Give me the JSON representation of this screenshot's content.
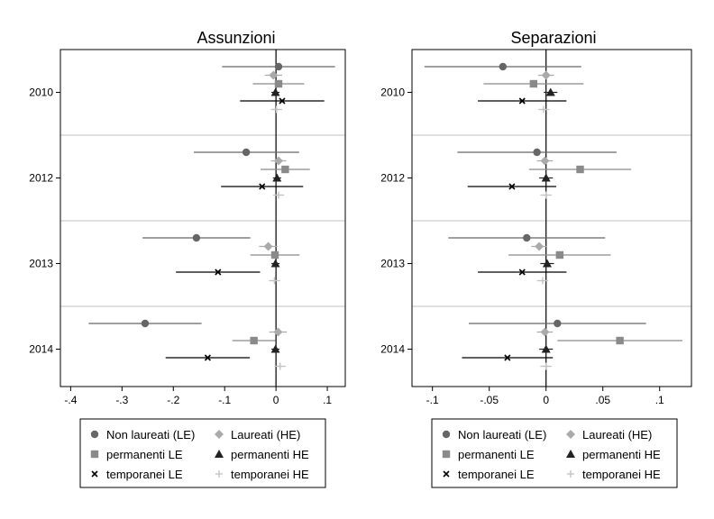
{
  "chart_data": [
    {
      "type": "scatter",
      "title": "Assunzioni",
      "xlim": [
        -0.42,
        0.135
      ],
      "xticks": [
        -0.4,
        -0.3,
        -0.2,
        -0.1,
        0,
        0.1
      ],
      "xtick_labels": [
        "-.4",
        "-.3",
        "-.2",
        "-.1",
        "0",
        ".1"
      ],
      "groups": [
        "2010",
        "2012",
        "2013",
        "2014"
      ],
      "grid": "horizontal separators between year groups",
      "series": [
        {
          "name": "Non laureati (LE)",
          "marker": "circle",
          "color": "#666666",
          "values": [
            0.005,
            -0.058,
            -0.155,
            -0.255
          ],
          "ci_low": [
            -0.105,
            -0.16,
            -0.26,
            -0.365
          ],
          "ci_high": [
            0.115,
            0.045,
            -0.05,
            -0.145
          ]
        },
        {
          "name": "Laureati (HE)",
          "marker": "diamond",
          "color": "#aaaaaa",
          "values": [
            -0.005,
            0.005,
            -0.015,
            0.004
          ],
          "ci_low": [
            -0.022,
            -0.01,
            -0.033,
            -0.013
          ],
          "ci_high": [
            0.012,
            0.02,
            0.003,
            0.021
          ]
        },
        {
          "name": "permanenti LE",
          "marker": "square",
          "color": "#8a8a8a",
          "values": [
            0.005,
            0.018,
            -0.002,
            -0.043
          ],
          "ci_low": [
            -0.045,
            -0.03,
            -0.05,
            -0.085
          ],
          "ci_high": [
            0.055,
            0.066,
            0.046,
            -0.001
          ]
        },
        {
          "name": "permanenti HE",
          "marker": "triangle",
          "color": "#222222",
          "values": [
            -0.001,
            0.002,
            -0.001,
            -0.001
          ],
          "ci_low": [
            -0.009,
            -0.006,
            -0.009,
            -0.009
          ],
          "ci_high": [
            0.007,
            0.01,
            0.007,
            0.007
          ]
        },
        {
          "name": "temporanei LE",
          "marker": "x",
          "color": "#000000",
          "values": [
            0.012,
            -0.027,
            -0.113,
            -0.133
          ],
          "ci_low": [
            -0.07,
            -0.107,
            -0.195,
            -0.215
          ],
          "ci_high": [
            0.094,
            0.053,
            -0.031,
            -0.051
          ]
        },
        {
          "name": "temporanei HE",
          "marker": "plus",
          "color": "#c4c4c4",
          "values": [
            0.001,
            0.005,
            -0.003,
            0.008
          ],
          "ci_low": [
            -0.01,
            -0.006,
            -0.014,
            -0.003
          ],
          "ci_high": [
            0.012,
            0.016,
            0.008,
            0.019
          ]
        }
      ]
    },
    {
      "type": "scatter",
      "title": "Separazioni",
      "xlim": [
        -0.118,
        0.128
      ],
      "xticks": [
        -0.1,
        -0.05,
        0,
        0.05,
        0.1
      ],
      "xtick_labels": [
        "-.1",
        "-.05",
        "0",
        ".05",
        ".1"
      ],
      "groups": [
        "2010",
        "2012",
        "2013",
        "2014"
      ],
      "grid": "horizontal separators between year groups",
      "series": [
        {
          "name": "Non laureati (LE)",
          "marker": "circle",
          "color": "#666666",
          "values": [
            -0.038,
            -0.008,
            -0.017,
            0.01
          ],
          "ci_low": [
            -0.107,
            -0.078,
            -0.086,
            -0.068
          ],
          "ci_high": [
            0.031,
            0.062,
            0.052,
            0.088
          ]
        },
        {
          "name": "Laureati (HE)",
          "marker": "diamond",
          "color": "#aaaaaa",
          "values": [
            0.0,
            -0.001,
            -0.006,
            -0.001
          ],
          "ci_low": [
            -0.007,
            -0.008,
            -0.013,
            -0.008
          ],
          "ci_high": [
            0.007,
            0.006,
            0.001,
            0.006
          ]
        },
        {
          "name": "permanenti LE",
          "marker": "square",
          "color": "#8a8a8a",
          "values": [
            -0.011,
            0.03,
            0.012,
            0.065
          ],
          "ci_low": [
            -0.055,
            -0.015,
            -0.033,
            0.01
          ],
          "ci_high": [
            0.033,
            0.075,
            0.057,
            0.12
          ]
        },
        {
          "name": "permanenti HE",
          "marker": "triangle",
          "color": "#222222",
          "values": [
            0.004,
            0.0,
            0.001,
            0.0
          ],
          "ci_low": [
            -0.002,
            -0.006,
            -0.005,
            -0.006
          ],
          "ci_high": [
            0.01,
            0.006,
            0.007,
            0.006
          ]
        },
        {
          "name": "temporanei LE",
          "marker": "x",
          "color": "#000000",
          "values": [
            -0.021,
            -0.03,
            -0.021,
            -0.034
          ],
          "ci_low": [
            -0.06,
            -0.069,
            -0.06,
            -0.074
          ],
          "ci_high": [
            0.018,
            0.009,
            0.018,
            0.006
          ]
        },
        {
          "name": "temporanei HE",
          "marker": "plus",
          "color": "#c4c4c4",
          "values": [
            -0.002,
            0.0,
            -0.003,
            0.0
          ],
          "ci_low": [
            -0.007,
            -0.005,
            -0.008,
            -0.005
          ],
          "ci_high": [
            0.003,
            0.005,
            0.002,
            0.005
          ]
        }
      ]
    }
  ]
}
